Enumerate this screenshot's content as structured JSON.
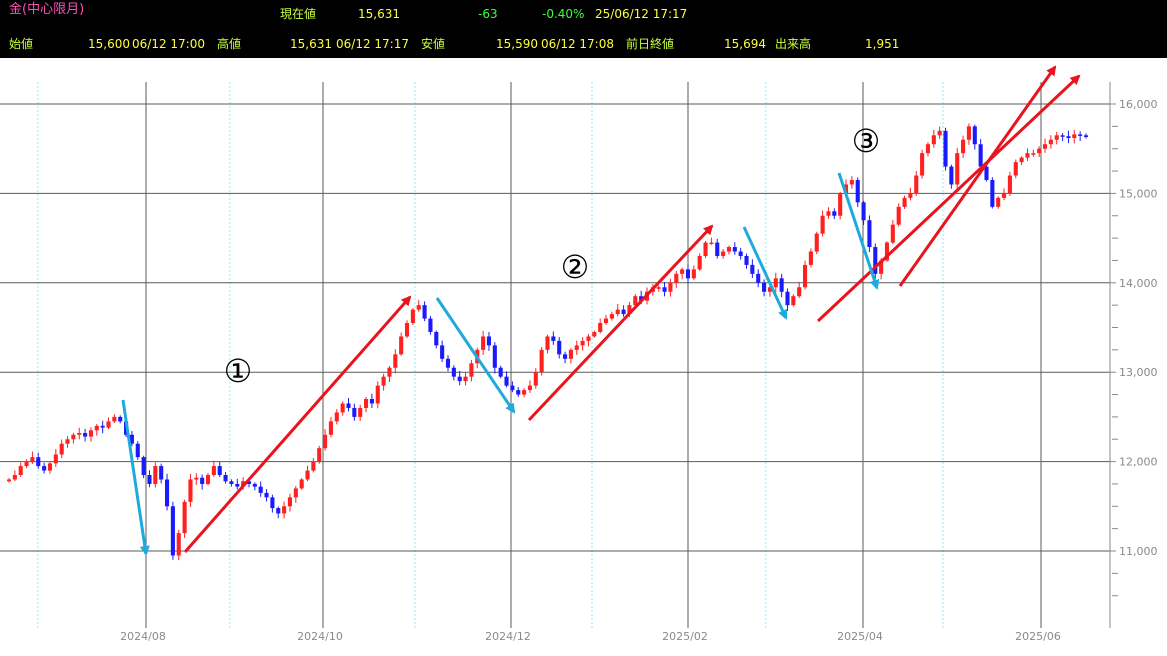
{
  "header": {
    "title": "金(中心限月)",
    "current_label": "現在値",
    "current_value": "15,631",
    "change": "-63",
    "change_pct": "-0.40%",
    "current_time": "25/06/12 17:17",
    "open_label": "始値",
    "open_value": "15,600",
    "open_time": "06/12 17:00",
    "high_label": "高値",
    "high_value": "15,631",
    "high_time": "06/12 17:17",
    "low_label": "安値",
    "low_value": "15,590",
    "low_time": "06/12 17:08",
    "prev_close_label": "前日終値",
    "prev_close_value": "15,694",
    "volume_label": "出来高",
    "volume_value": "1,951"
  },
  "chart_data": {
    "type": "candlestick",
    "y_ticks": [
      "11,000",
      "12,000",
      "13,000",
      "14,000",
      "15,000",
      "16,000"
    ],
    "y_tick_values": [
      11000,
      12000,
      13000,
      14000,
      15000,
      16000
    ],
    "ylim": [
      10300,
      16300
    ],
    "x_ticks": [
      "2024/08",
      "2024/10",
      "2024/12",
      "2025/02",
      "2025/04",
      "2025/06"
    ],
    "annotations": [
      "①",
      "②",
      "③"
    ],
    "colors": {
      "up": "#ff2020",
      "down": "#1a1aff",
      "up_arrow": "#e8141e",
      "down_arrow": "#1eaadc",
      "grid": "#5a5a5a",
      "minor_grid": "#8ee8f0"
    },
    "series": [
      {
        "values": [
          11800,
          11850,
          11950,
          12000,
          12050,
          11950,
          11900,
          11980,
          12080,
          12200,
          12250,
          12300,
          12320,
          12280,
          12350,
          12400,
          12380,
          12450,
          12500,
          12450,
          12300,
          12200,
          12050,
          11850,
          11750,
          11950,
          11800,
          11500,
          10950,
          11200,
          11550,
          11800,
          11820,
          11750,
          11850,
          11950,
          11850,
          11780,
          11750,
          11720,
          11780,
          11750,
          11720,
          11650,
          11600,
          11480,
          11420,
          11500,
          11600,
          11700,
          11800,
          11900,
          12000,
          12150,
          12300,
          12450,
          12550,
          12650,
          12600,
          12500,
          12600,
          12700,
          12650,
          12850,
          12950,
          13050,
          13200,
          13400,
          13550,
          13700,
          13750,
          13600,
          13450,
          13300,
          13150,
          13050,
          12950,
          12900,
          12950,
          13100,
          13250,
          13400,
          13300,
          13050,
          12950,
          12850,
          12800,
          12750,
          12800,
          12850,
          13000,
          13250,
          13400,
          13350,
          13200,
          13150,
          13250,
          13300,
          13350,
          13400,
          13450,
          13550,
          13600,
          13650,
          13700,
          13650,
          13750,
          13850,
          13800,
          13900,
          13950,
          13950,
          13900,
          14000,
          14100,
          14150,
          14050,
          14150,
          14300,
          14450,
          14450,
          14300,
          14350,
          14400,
          14350,
          14300,
          14200,
          14100,
          14000,
          13900,
          13950,
          14050,
          13900,
          13750,
          13850,
          13950,
          14200,
          14350,
          14550,
          14750,
          14800,
          14750,
          15000,
          15100,
          15150,
          14900,
          14700,
          14400,
          14100,
          14250,
          14450,
          14650,
          14850,
          14950,
          15000,
          15200,
          15450,
          15550,
          15650,
          15700,
          15300,
          15100,
          15450,
          15600,
          15750,
          15550,
          15300,
          15150,
          14850,
          14950,
          15000,
          15200,
          15350,
          15400,
          15450,
          15450,
          15500,
          15550,
          15600,
          15650,
          15640,
          15620,
          15660,
          15650,
          15631
        ]
      }
    ]
  }
}
